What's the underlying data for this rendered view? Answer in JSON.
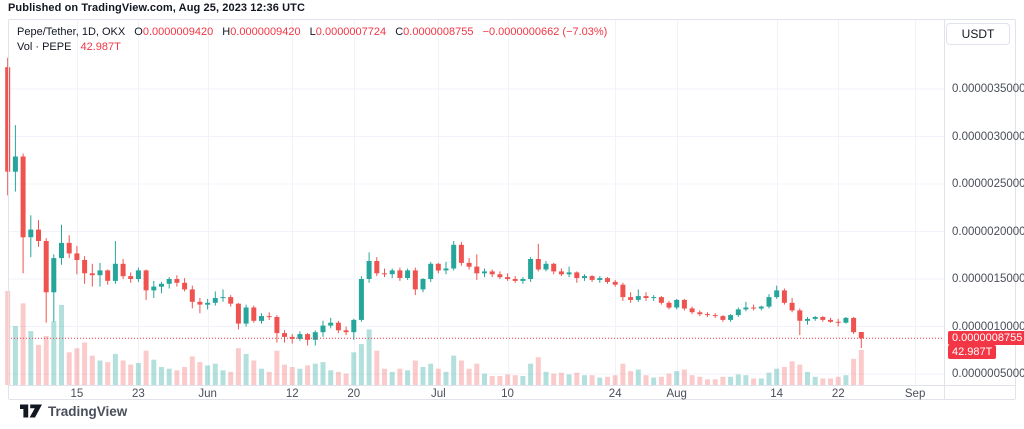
{
  "published_bar": {
    "text": "Published on TradingView.com, Aug 25, 2023 12:36 UTC"
  },
  "legend": {
    "symbol_title": "Pepe/Tether, 1D, OKX",
    "ohlc": [
      {
        "label": "O",
        "value": "0.0000009420"
      },
      {
        "label": "H",
        "value": "0.0000009420"
      },
      {
        "label": "L",
        "value": "0.0000007724"
      },
      {
        "label": "C",
        "value": "0.0000008755"
      }
    ],
    "change": "−0.0000000662 (−7.03%)",
    "volume_label": "Vol · PEPE",
    "volume_value": "42.987T"
  },
  "currency_button": {
    "label": "USDT"
  },
  "price_axis": {
    "ticks": [
      {
        "label": "0.0000035000",
        "value": 35
      },
      {
        "label": "0.0000030000",
        "value": 30
      },
      {
        "label": "0.0000025000",
        "value": 25
      },
      {
        "label": "0.0000020000",
        "value": 20
      },
      {
        "label": "0.0000015000",
        "value": 15
      },
      {
        "label": "0.0000010000",
        "value": 10
      },
      {
        "label": "0.0000005000",
        "value": 5
      }
    ],
    "price_badge": "0.0000008755",
    "volume_badge": "42.987T"
  },
  "time_axis": {
    "ticks": [
      {
        "label": "15",
        "i": 9
      },
      {
        "label": "23",
        "i": 17
      },
      {
        "label": "Jun",
        "i": 26
      },
      {
        "label": "12",
        "i": 37
      },
      {
        "label": "20",
        "i": 45
      },
      {
        "label": "Jul",
        "i": 56
      },
      {
        "label": "10",
        "i": 65
      },
      {
        "label": "24",
        "i": 79
      },
      {
        "label": "Aug",
        "i": 87
      },
      {
        "label": "14",
        "i": 100
      },
      {
        "label": "22",
        "i": 108
      },
      {
        "label": "Sep",
        "i": 118
      }
    ]
  },
  "footer": {
    "brand": "TradingView"
  },
  "colors": {
    "up": "#26a69a",
    "down": "#ef5350",
    "vol_up": "rgba(38,166,154,0.35)",
    "vol_down": "rgba(239,83,80,0.30)",
    "grid": "#f0f3fa",
    "badge": "#f23645",
    "last_price_line": "#f23645"
  },
  "chart_data": {
    "type": "candlestick",
    "title": "Pepe/Tether, 1D, OKX",
    "symbol": "PEPE/USDT",
    "exchange": "OKX",
    "interval": "1D",
    "price_unit": "candle values are ×1e-7 USDT",
    "volume_unit": "T (trillions of PEPE, estimated from bar heights)",
    "last_price": {
      "label": "0.0000008755",
      "value": 8.755,
      "volume_label": "42.987T"
    },
    "y_axis": {
      "min": 4.2,
      "max": 38.8,
      "ticks": [
        35,
        30,
        25,
        20,
        15,
        10,
        5
      ]
    },
    "x_axis": {
      "start_date": "2023-05-06",
      "end_date": "2023-08-25",
      "visible_until": "2023-09-08"
    },
    "grid": true,
    "legend_position": "top-left",
    "candles": [
      [
        "2023-05-06",
        37.3,
        38.3,
        23.8,
        26.3,
        115
      ],
      [
        "2023-05-07",
        26.3,
        31.2,
        24.2,
        27.9,
        72
      ],
      [
        "2023-05-08",
        27.9,
        28.2,
        15.6,
        19.4,
        100
      ],
      [
        "2023-05-09",
        19.4,
        21.7,
        17.3,
        20.2,
        66
      ],
      [
        "2023-05-10",
        20.2,
        21.2,
        18.4,
        19.0,
        49
      ],
      [
        "2023-05-11",
        19.0,
        19.3,
        10.4,
        13.6,
        60
      ],
      [
        "2023-05-12",
        13.6,
        17.6,
        10.5,
        17.2,
        78
      ],
      [
        "2023-05-13",
        17.2,
        20.7,
        16.5,
        18.8,
        98
      ],
      [
        "2023-05-14",
        18.8,
        19.6,
        17.2,
        17.7,
        40
      ],
      [
        "2023-05-15",
        17.7,
        18.5,
        15.5,
        17.0,
        45
      ],
      [
        "2023-05-16",
        17.0,
        17.4,
        14.5,
        15.6,
        52
      ],
      [
        "2023-05-17",
        15.6,
        16.6,
        14.2,
        15.4,
        36
      ],
      [
        "2023-05-18",
        15.4,
        16.7,
        14.2,
        15.9,
        30
      ],
      [
        "2023-05-19",
        15.9,
        16.0,
        14.4,
        14.8,
        28
      ],
      [
        "2023-05-20",
        14.8,
        19.0,
        14.5,
        16.6,
        38
      ],
      [
        "2023-05-21",
        16.6,
        17.1,
        15.0,
        15.3,
        30
      ],
      [
        "2023-05-22",
        15.3,
        15.7,
        14.6,
        15.0,
        25
      ],
      [
        "2023-05-23",
        15.0,
        16.2,
        14.7,
        15.9,
        27
      ],
      [
        "2023-05-24",
        15.9,
        16.0,
        12.8,
        13.8,
        42
      ],
      [
        "2023-05-25",
        13.8,
        14.8,
        13.0,
        14.2,
        31
      ],
      [
        "2023-05-26",
        14.2,
        14.7,
        13.5,
        14.5,
        22
      ],
      [
        "2023-05-27",
        14.5,
        15.2,
        14.0,
        15.0,
        20
      ],
      [
        "2023-05-28",
        15.0,
        15.4,
        14.2,
        14.6,
        18
      ],
      [
        "2023-05-29",
        14.6,
        15.1,
        13.7,
        13.9,
        22
      ],
      [
        "2023-05-30",
        13.9,
        14.3,
        11.9,
        12.6,
        35
      ],
      [
        "2023-05-31",
        12.6,
        13.0,
        11.4,
        12.3,
        28
      ],
      [
        "2023-06-01",
        12.3,
        12.9,
        11.8,
        12.5,
        24
      ],
      [
        "2023-06-02",
        12.5,
        13.7,
        12.2,
        13.0,
        26
      ],
      [
        "2023-06-03",
        13.0,
        13.9,
        12.6,
        13.1,
        18
      ],
      [
        "2023-06-04",
        13.1,
        13.3,
        12.1,
        12.4,
        16
      ],
      [
        "2023-06-05",
        12.4,
        12.5,
        9.7,
        10.3,
        45
      ],
      [
        "2023-06-06",
        10.3,
        12.3,
        10.0,
        12.0,
        38
      ],
      [
        "2023-06-07",
        12.0,
        12.2,
        10.4,
        10.6,
        30
      ],
      [
        "2023-06-08",
        10.6,
        11.4,
        10.3,
        11.1,
        20
      ],
      [
        "2023-06-09",
        11.1,
        11.5,
        10.7,
        11.0,
        16
      ],
      [
        "2023-06-10",
        11.0,
        11.2,
        8.3,
        9.3,
        42
      ],
      [
        "2023-06-11",
        9.3,
        9.6,
        8.3,
        8.9,
        25
      ],
      [
        "2023-06-12",
        8.9,
        9.2,
        8.2,
        8.7,
        22
      ],
      [
        "2023-06-13",
        8.7,
        9.5,
        8.5,
        9.2,
        20
      ],
      [
        "2023-06-14",
        9.2,
        9.3,
        8.0,
        8.6,
        24
      ],
      [
        "2023-06-15",
        8.6,
        9.6,
        8.0,
        9.4,
        26
      ],
      [
        "2023-06-16",
        9.4,
        10.6,
        8.9,
        10.1,
        28
      ],
      [
        "2023-06-17",
        10.1,
        10.9,
        9.8,
        10.4,
        18
      ],
      [
        "2023-06-18",
        10.4,
        10.6,
        9.3,
        9.6,
        16
      ],
      [
        "2023-06-19",
        9.6,
        10.0,
        9.1,
        9.4,
        14
      ],
      [
        "2023-06-20",
        9.4,
        10.8,
        8.6,
        10.7,
        40
      ],
      [
        "2023-06-21",
        10.7,
        15.3,
        10.5,
        15.0,
        50
      ],
      [
        "2023-06-22",
        15.0,
        17.8,
        14.6,
        16.9,
        68
      ],
      [
        "2023-06-23",
        16.9,
        17.3,
        15.3,
        15.6,
        42
      ],
      [
        "2023-06-24",
        15.6,
        16.1,
        15.2,
        15.5,
        20
      ],
      [
        "2023-06-25",
        15.5,
        16.1,
        15.1,
        15.9,
        16
      ],
      [
        "2023-06-26",
        15.9,
        16.2,
        14.8,
        15.1,
        20
      ],
      [
        "2023-06-27",
        15.1,
        16.1,
        14.9,
        15.9,
        18
      ],
      [
        "2023-06-28",
        15.9,
        16.2,
        13.3,
        13.9,
        30
      ],
      [
        "2023-06-29",
        13.9,
        15.1,
        13.6,
        15.0,
        22
      ],
      [
        "2023-06-30",
        15.0,
        16.8,
        14.7,
        16.6,
        26
      ],
      [
        "2023-07-01",
        16.6,
        16.7,
        15.6,
        15.9,
        20
      ],
      [
        "2023-07-02",
        15.9,
        16.8,
        15.5,
        16.1,
        16
      ],
      [
        "2023-07-03",
        16.1,
        19.0,
        15.9,
        18.6,
        36
      ],
      [
        "2023-07-04",
        18.6,
        18.9,
        16.4,
        16.7,
        30
      ],
      [
        "2023-07-05",
        16.7,
        17.2,
        16.0,
        16.3,
        20
      ],
      [
        "2023-07-06",
        16.3,
        17.6,
        14.9,
        15.6,
        26
      ],
      [
        "2023-07-07",
        15.6,
        16.1,
        15.2,
        15.8,
        14
      ],
      [
        "2023-07-08",
        15.8,
        16.0,
        15.2,
        15.5,
        11
      ],
      [
        "2023-07-09",
        15.5,
        15.8,
        15.0,
        15.2,
        11
      ],
      [
        "2023-07-10",
        15.2,
        15.6,
        14.8,
        15.0,
        13
      ],
      [
        "2023-07-11",
        15.0,
        15.3,
        14.6,
        14.8,
        12
      ],
      [
        "2023-07-12",
        14.8,
        15.2,
        14.5,
        15.0,
        11
      ],
      [
        "2023-07-13",
        15.0,
        17.3,
        14.7,
        17.1,
        26
      ],
      [
        "2023-07-14",
        17.1,
        18.7,
        15.8,
        16.0,
        34
      ],
      [
        "2023-07-15",
        16.0,
        16.9,
        15.8,
        16.6,
        16
      ],
      [
        "2023-07-16",
        16.6,
        16.7,
        15.5,
        15.8,
        14
      ],
      [
        "2023-07-17",
        15.8,
        16.1,
        15.3,
        15.5,
        15
      ],
      [
        "2023-07-18",
        15.5,
        16.3,
        15.2,
        15.7,
        13
      ],
      [
        "2023-07-19",
        15.7,
        15.8,
        14.6,
        15.1,
        15
      ],
      [
        "2023-07-20",
        15.1,
        15.5,
        14.8,
        15.3,
        12
      ],
      [
        "2023-07-21",
        15.3,
        15.4,
        14.7,
        14.9,
        12
      ],
      [
        "2023-07-22",
        14.9,
        15.3,
        14.6,
        15.1,
        9
      ],
      [
        "2023-07-23",
        15.1,
        15.2,
        14.5,
        14.7,
        10
      ],
      [
        "2023-07-24",
        14.7,
        14.9,
        14.2,
        14.4,
        12
      ],
      [
        "2023-07-25",
        14.4,
        14.6,
        12.7,
        13.1,
        26
      ],
      [
        "2023-07-26",
        13.1,
        13.6,
        12.5,
        12.8,
        17
      ],
      [
        "2023-07-27",
        12.8,
        13.9,
        12.6,
        13.2,
        19
      ],
      [
        "2023-07-28",
        13.2,
        13.6,
        12.7,
        13.0,
        12
      ],
      [
        "2023-07-29",
        13.0,
        13.3,
        12.7,
        13.1,
        9
      ],
      [
        "2023-07-30",
        13.1,
        13.2,
        12.3,
        12.5,
        10
      ],
      [
        "2023-07-31",
        12.5,
        12.7,
        11.8,
        12.0,
        14
      ],
      [
        "2023-08-01",
        12.0,
        12.9,
        11.8,
        12.8,
        17
      ],
      [
        "2023-08-02",
        12.8,
        12.9,
        11.7,
        11.9,
        19
      ],
      [
        "2023-08-03",
        11.9,
        12.1,
        11.3,
        11.5,
        12
      ],
      [
        "2023-08-04",
        11.5,
        11.7,
        11.1,
        11.3,
        10
      ],
      [
        "2023-08-05",
        11.3,
        11.5,
        11.0,
        11.2,
        7
      ],
      [
        "2023-08-06",
        11.2,
        11.4,
        10.9,
        11.1,
        7
      ],
      [
        "2023-08-07",
        11.1,
        11.2,
        10.5,
        10.7,
        10
      ],
      [
        "2023-08-08",
        10.7,
        11.3,
        10.5,
        11.2,
        10
      ],
      [
        "2023-08-09",
        11.2,
        12.0,
        11.0,
        11.8,
        13
      ],
      [
        "2023-08-10",
        11.8,
        12.6,
        11.6,
        12.0,
        12
      ],
      [
        "2023-08-11",
        12.0,
        12.3,
        11.7,
        11.9,
        8
      ],
      [
        "2023-08-12",
        11.9,
        12.2,
        11.7,
        12.1,
        8
      ],
      [
        "2023-08-13",
        12.1,
        13.4,
        11.9,
        13.1,
        15
      ],
      [
        "2023-08-14",
        13.1,
        14.3,
        12.9,
        13.8,
        20
      ],
      [
        "2023-08-15",
        13.8,
        14.0,
        12.3,
        12.5,
        22
      ],
      [
        "2023-08-16",
        12.5,
        13.0,
        11.5,
        11.7,
        29
      ],
      [
        "2023-08-17",
        11.7,
        11.9,
        9.1,
        10.6,
        25
      ],
      [
        "2023-08-18",
        10.6,
        11.0,
        10.2,
        10.8,
        16
      ],
      [
        "2023-08-19",
        10.8,
        11.1,
        10.6,
        11.0,
        10
      ],
      [
        "2023-08-20",
        11.0,
        11.1,
        10.5,
        10.7,
        8
      ],
      [
        "2023-08-21",
        10.7,
        10.9,
        10.4,
        10.5,
        8
      ],
      [
        "2023-08-22",
        10.5,
        10.8,
        10.0,
        10.4,
        10
      ],
      [
        "2023-08-23",
        10.4,
        11.0,
        10.3,
        10.9,
        12
      ],
      [
        "2023-08-24",
        10.9,
        11.0,
        9.2,
        9.4,
        32
      ],
      [
        "2023-08-25",
        9.42,
        9.42,
        7.724,
        8.755,
        42.987
      ]
    ]
  }
}
